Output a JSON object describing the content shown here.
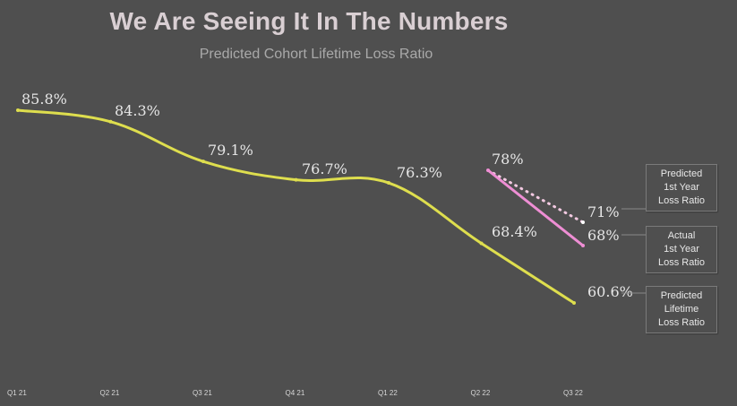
{
  "slide": {
    "title": "We Are Seeing It In The Numbers",
    "subtitle": "Predicted Cohort Lifetime Loss Ratio"
  },
  "chart_data": {
    "type": "line",
    "title": "We Are Seeing It In The Numbers",
    "subtitle": "Predicted Cohort Lifetime Loss Ratio",
    "categories": [
      "Q1 21",
      "Q2 21",
      "Q3 21",
      "Q4 21",
      "Q1 22",
      "Q2 22",
      "Q3 22"
    ],
    "ylim": [
      50,
      90
    ],
    "grid": false,
    "series": [
      {
        "name_lines": [
          "Predicted",
          "Lifetime",
          "Loss Ratio"
        ],
        "color": "#dede4e",
        "style": "solid",
        "values": [
          85.8,
          84.3,
          79.1,
          76.7,
          76.3,
          68.4,
          60.6
        ],
        "labels": [
          "85.8%",
          "84.3%",
          "79.1%",
          "76.7%",
          "76.3%",
          "68.4%",
          "60.6%"
        ]
      },
      {
        "name_lines": [
          "Predicted",
          "1st Year",
          "Loss Ratio"
        ],
        "color": "#f2c9e1",
        "style": "dotted",
        "values": [
          null,
          null,
          null,
          null,
          null,
          78,
          71
        ],
        "labels": [
          "",
          "",
          "",
          "",
          "",
          "78%",
          "71%"
        ]
      },
      {
        "name_lines": [
          "Actual",
          "1st Year",
          "Loss Ratio"
        ],
        "color": "#ee8ed4",
        "style": "solid",
        "values": [
          null,
          null,
          null,
          null,
          null,
          78,
          68
        ],
        "labels": [
          "",
          "",
          "",
          "",
          "",
          "",
          "68%"
        ]
      }
    ]
  }
}
